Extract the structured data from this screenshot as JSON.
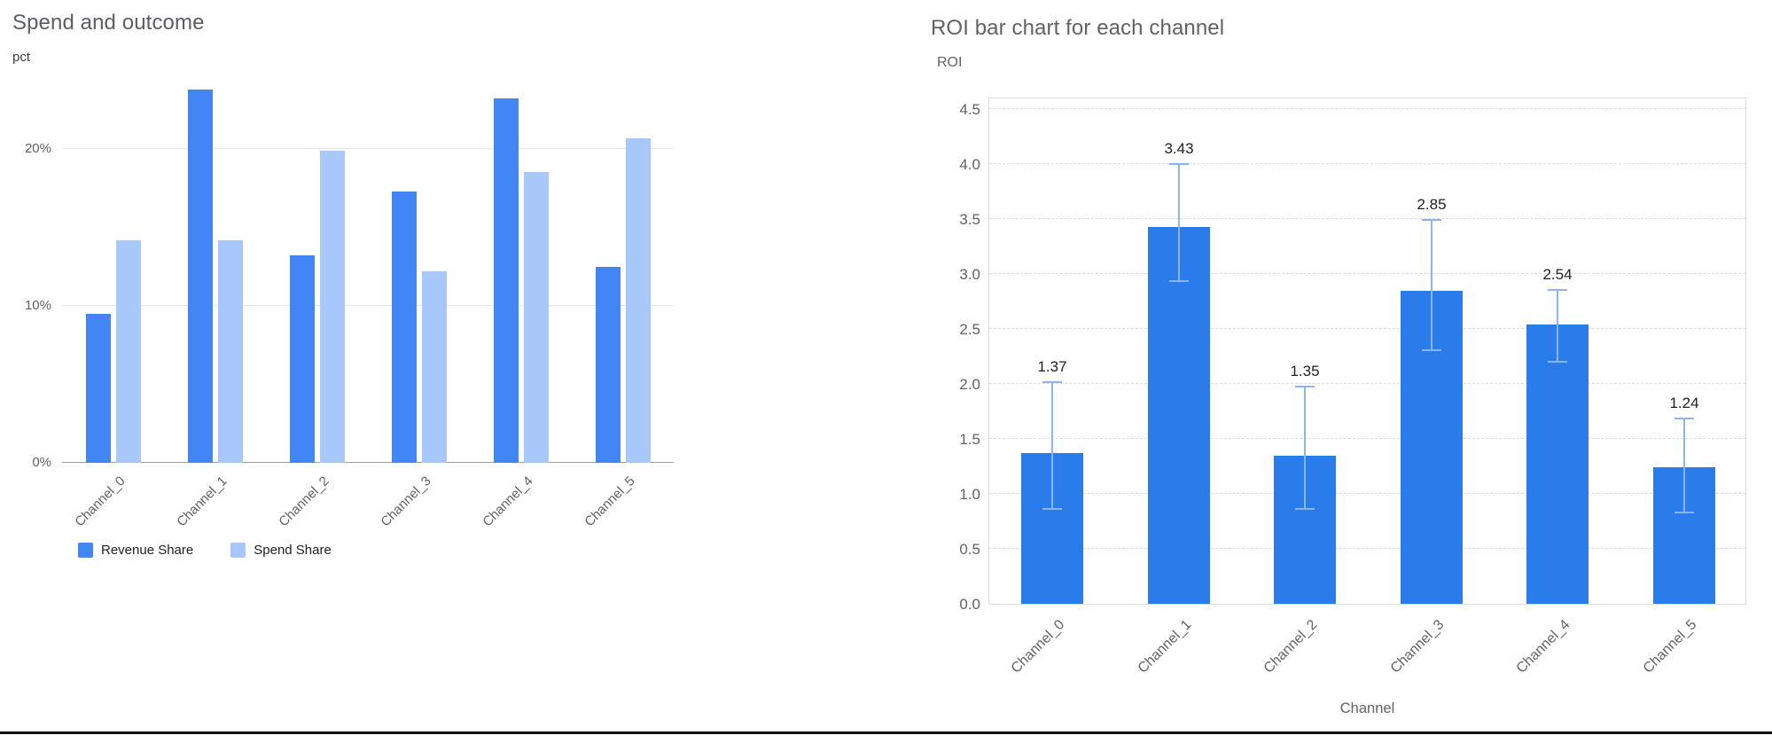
{
  "chart_data": [
    {
      "type": "bar",
      "title": "Spend and outcome",
      "ylabel": "pct",
      "xlabel": "",
      "categories": [
        "Channel_0",
        "Channel_1",
        "Channel_2",
        "Channel_3",
        "Channel_4",
        "Channel_5"
      ],
      "series": [
        {
          "name": "Revenue Share",
          "color": "#4285f4",
          "values": [
            9.5,
            23.8,
            13.2,
            17.3,
            23.2,
            12.5
          ]
        },
        {
          "name": "Spend Share",
          "color": "#a8c7fa",
          "values": [
            14.2,
            14.2,
            19.9,
            12.2,
            18.5,
            20.7
          ]
        }
      ],
      "y_ticks": [
        0,
        10,
        20
      ],
      "y_tick_labels": [
        "0%",
        "10%",
        "20%"
      ],
      "ylim": [
        0,
        25.7
      ],
      "grid": true,
      "legend_position": "bottom"
    },
    {
      "type": "bar",
      "title": "ROI bar chart for each channel",
      "xlabel": "Channel",
      "ylabel": "ROI",
      "categories": [
        "Channel_0",
        "Channel_1",
        "Channel_2",
        "Channel_3",
        "Channel_4",
        "Channel_5"
      ],
      "values": [
        1.37,
        3.43,
        1.35,
        2.85,
        2.54,
        1.24
      ],
      "bar_labels": [
        "1.37",
        "3.43",
        "1.35",
        "2.85",
        "2.54",
        "1.24"
      ],
      "error_low": [
        0.88,
        2.95,
        0.88,
        2.32,
        2.22,
        0.85
      ],
      "error_high": [
        2.03,
        4.02,
        1.99,
        3.51,
        2.87,
        1.7
      ],
      "y_ticks": [
        0,
        0.5,
        1,
        1.5,
        2,
        2.5,
        3,
        3.5,
        4,
        4.5
      ],
      "y_tick_labels": [
        "0.0",
        "0.5",
        "1.0",
        "1.5",
        "2.0",
        "2.5",
        "3.0",
        "3.5",
        "4.0",
        "4.5"
      ],
      "ylim": [
        0,
        4.5
      ],
      "bar_color": "#2b7ceb",
      "error_color": "#8ab4f8",
      "grid": "dashed",
      "legend_position": "none"
    }
  ]
}
